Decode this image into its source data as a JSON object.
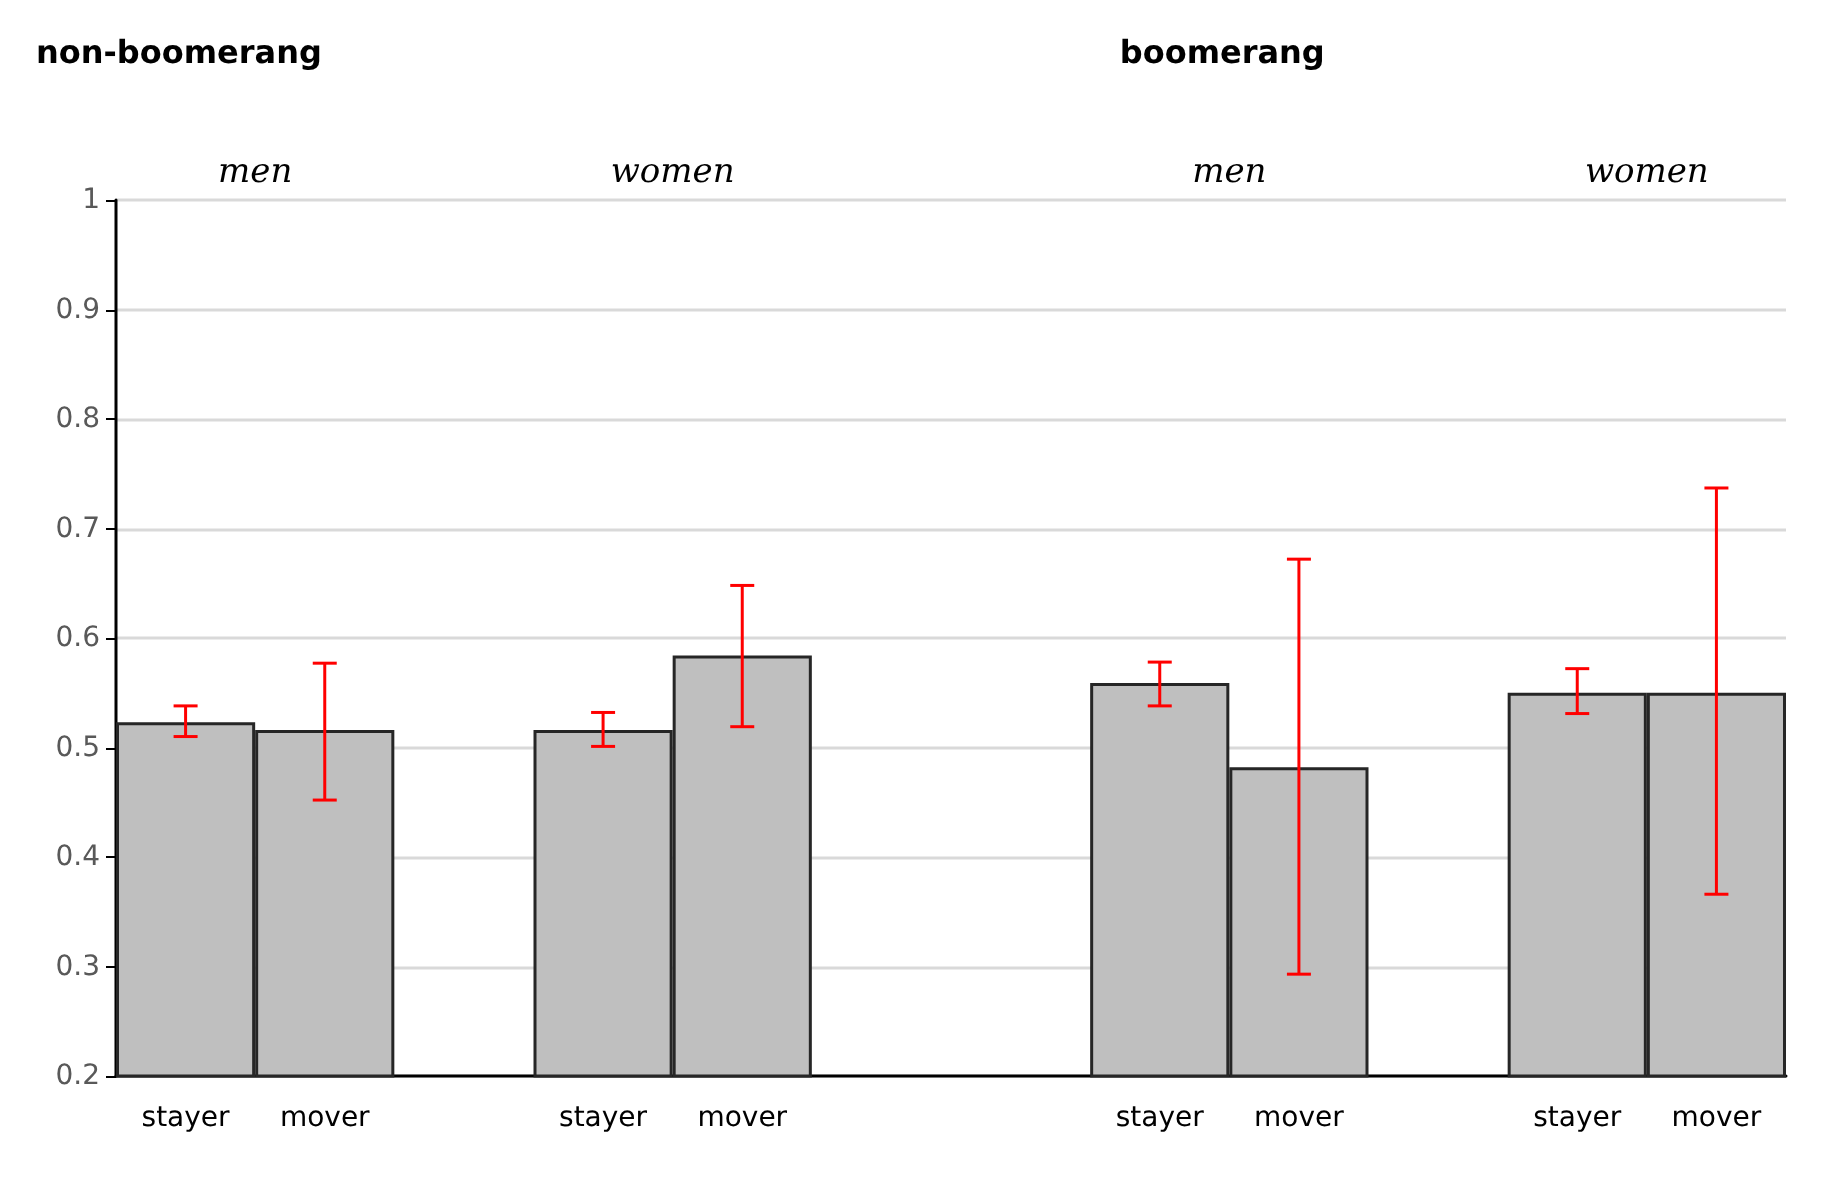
{
  "chart_data": {
    "type": "bar",
    "annotations": [
      "non-boomerang",
      "boomerang",
      "men",
      "women",
      "men",
      "women"
    ],
    "categories": [
      "stayer",
      "mover",
      null,
      "stayer",
      "mover",
      null,
      null,
      "stayer",
      "mover",
      null,
      "stayer",
      "mover"
    ],
    "series": [
      {
        "color": "#bfbfbf",
        "values": [
          0.523,
          0.516,
          null,
          0.516,
          0.584,
          null,
          null,
          0.559,
          0.482,
          null,
          0.55,
          0.55
        ],
        "errors": [
          [
            0.51,
            0.538
          ],
          [
            0.452,
            0.577
          ],
          null,
          [
            0.501,
            0.532
          ],
          [
            0.519,
            0.648
          ],
          null,
          null,
          [
            0.538,
            0.578
          ],
          [
            0.293,
            0.672
          ],
          null,
          [
            0.531,
            0.572
          ],
          [
            0.366,
            0.737
          ]
        ]
      }
    ],
    "ylim": [
      0.2,
      1
    ],
    "yticks": [
      0.2,
      0.3,
      0.4,
      0.5,
      0.6,
      0.7,
      0.8,
      0.9,
      1
    ],
    "grid": "y"
  }
}
